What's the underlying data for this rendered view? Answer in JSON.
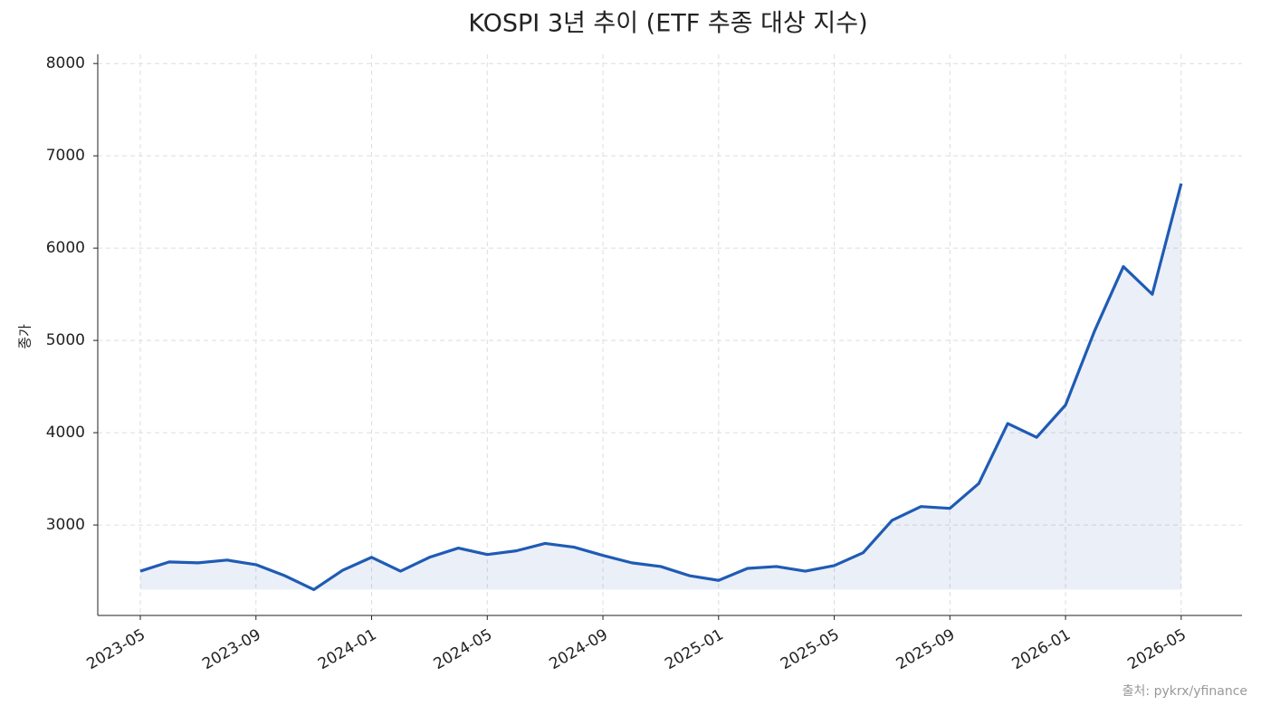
{
  "chart_data": {
    "type": "line",
    "title": "KOSPI 3년 추이 (ETF 추종 대상 지수)",
    "y_label": "종가",
    "source": "출처: pykrx/yfinance",
    "x": [
      "2023-05",
      "2023-06",
      "2023-07",
      "2023-08",
      "2023-09",
      "2023-10",
      "2023-11",
      "2023-12",
      "2024-01",
      "2024-02",
      "2024-03",
      "2024-04",
      "2024-05",
      "2024-06",
      "2024-07",
      "2024-08",
      "2024-09",
      "2024-10",
      "2024-11",
      "2024-12",
      "2025-01",
      "2025-02",
      "2025-03",
      "2025-04",
      "2025-05",
      "2025-06",
      "2025-07",
      "2025-08",
      "2025-09",
      "2025-10",
      "2025-11",
      "2025-12",
      "2026-01",
      "2026-02",
      "2026-03",
      "2026-04",
      "2026-05"
    ],
    "series": [
      {
        "name": "종가",
        "color": "#1f5bb5",
        "values": [
          2500,
          2600,
          2590,
          2620,
          2570,
          2450,
          2300,
          2510,
          2650,
          2500,
          2650,
          2750,
          2680,
          2720,
          2800,
          2760,
          2670,
          2590,
          2550,
          2450,
          2400,
          2530,
          2550,
          2500,
          2560,
          2700,
          3050,
          3200,
          3180,
          3450,
          4100,
          3950,
          4300,
          5100,
          5800,
          5500,
          6700
        ]
      }
    ],
    "xticks": [
      "2023-05",
      "2023-09",
      "2024-01",
      "2024-05",
      "2024-09",
      "2025-01",
      "2025-05",
      "2025-09",
      "2026-01",
      "2026-05"
    ],
    "ylim": [
      2020,
      8100
    ],
    "yticks": [
      3000,
      4000,
      5000,
      6000,
      7000,
      8000
    ],
    "grid": true
  }
}
